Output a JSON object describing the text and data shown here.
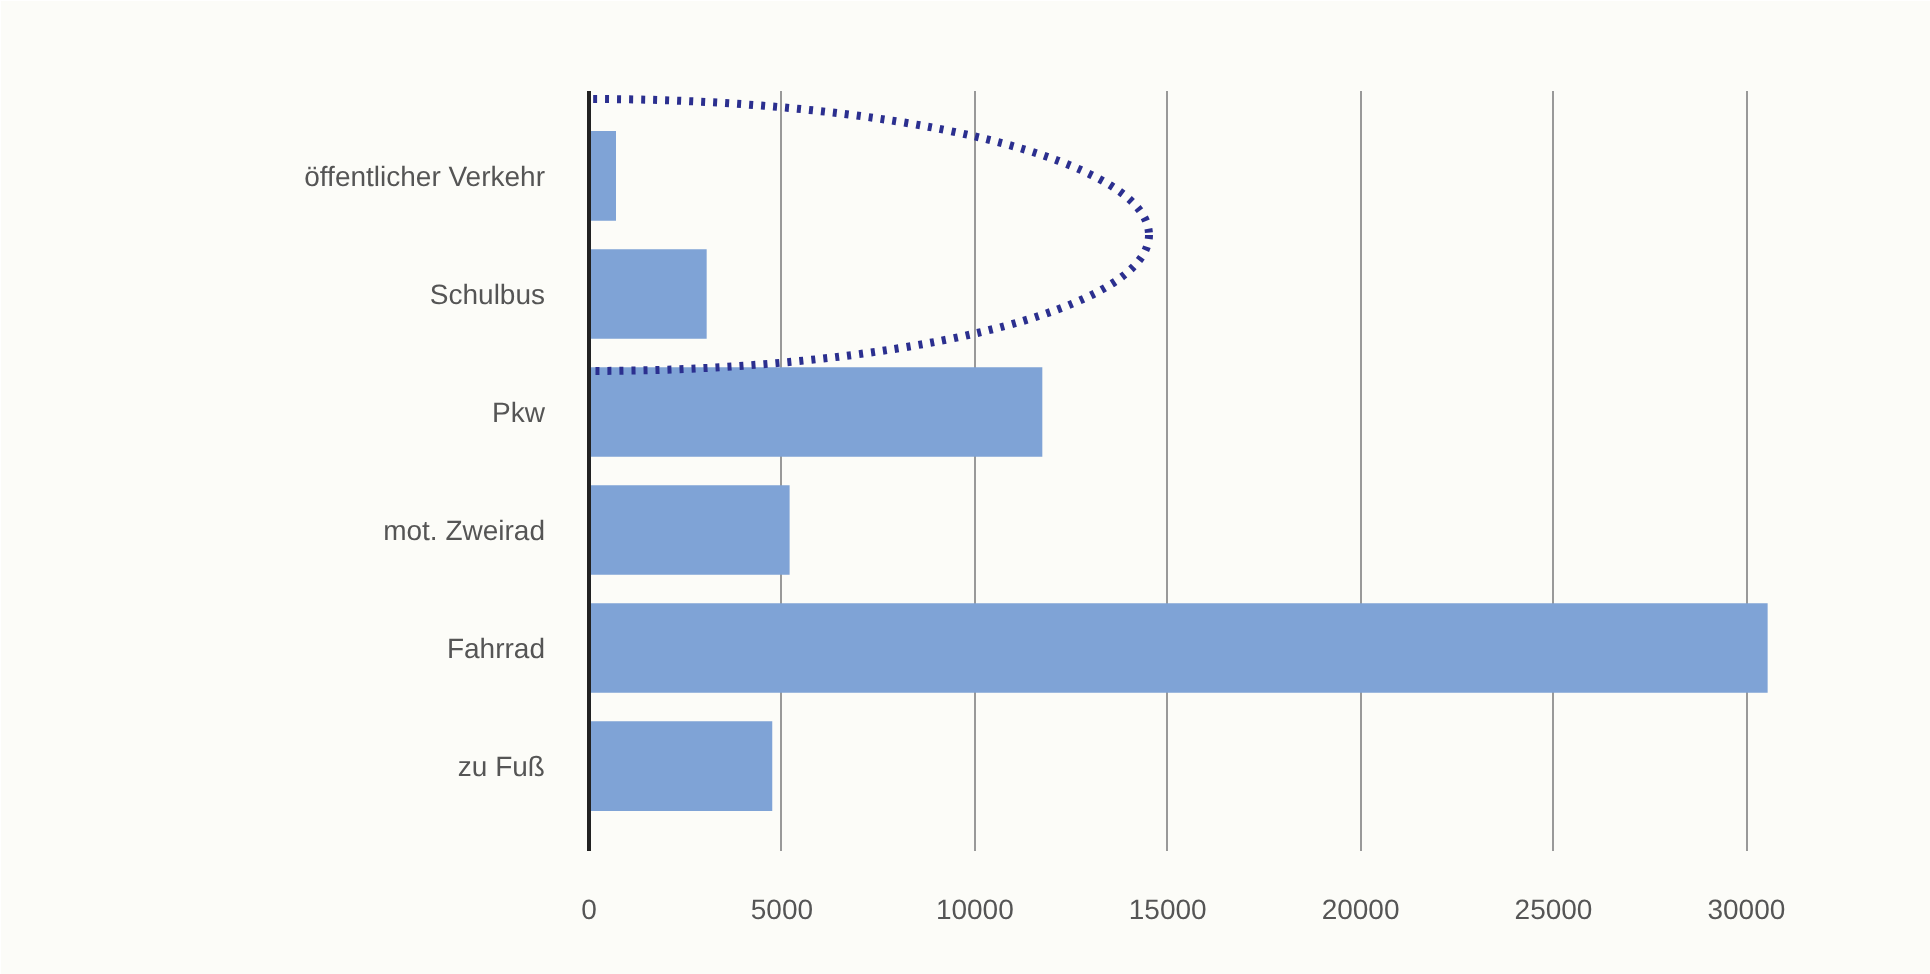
{
  "chart_data": {
    "type": "bar",
    "orientation": "horizontal",
    "categories": [
      "öffentlicher Verkehr",
      "Schulbus",
      "Pkw",
      "mot. Zweirad",
      "Fahrrad",
      "zu Fuß"
    ],
    "values": [
      700,
      3050,
      11750,
      5200,
      30550,
      4750
    ],
    "color": "#7fa3d6",
    "xlim": [
      0,
      31000
    ],
    "xticks": [
      0,
      5000,
      10000,
      15000,
      20000,
      25000,
      30000
    ],
    "grid": "x"
  }
}
